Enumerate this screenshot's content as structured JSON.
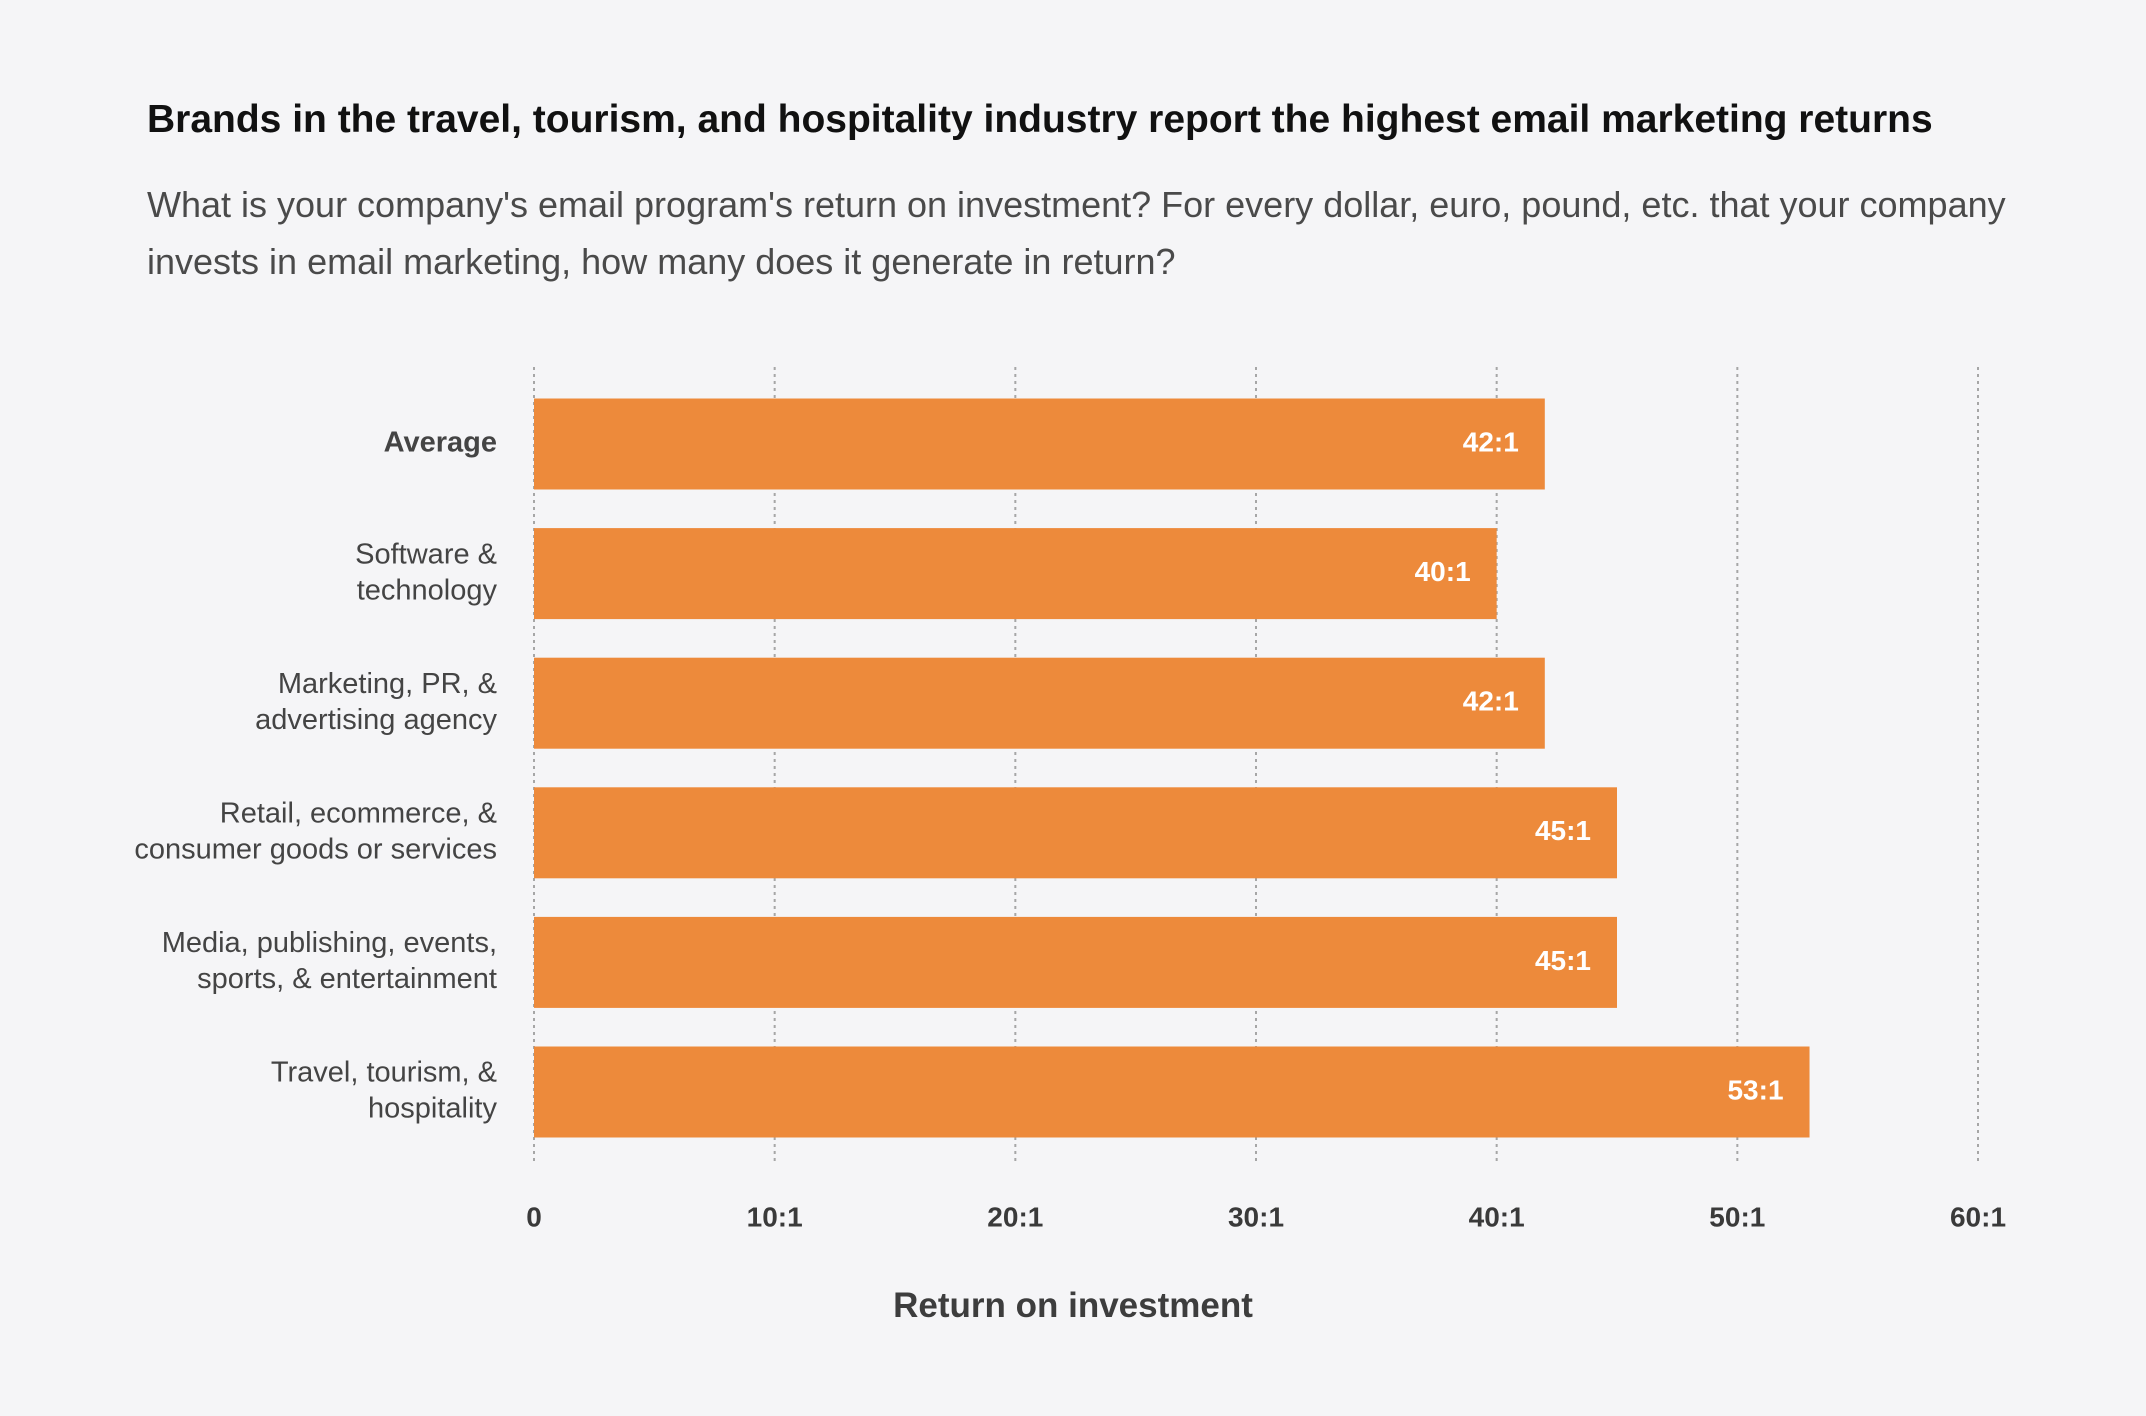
{
  "header": {
    "title": "Brands in the travel, tourism, and hospitality industry report the highest email marketing returns",
    "subtitle": "What is your company's email program's return on investment? For every dollar, euro, pound, etc. that your company invests in email marketing, how many does it generate in return?"
  },
  "colors": {
    "bar": "#ed8a3b",
    "grid": "#a6a6a6",
    "background": "#f5f5f7"
  },
  "chart_data": {
    "type": "bar",
    "orientation": "horizontal",
    "title": "Brands in the travel, tourism, and hospitality industry report the highest email marketing returns",
    "subtitle": "What is your company's email program's return on investment? For every dollar, euro, pound, etc. that your company invests in email marketing, how many does it generate in return?",
    "categories": [
      [
        "Average"
      ],
      [
        "Software &",
        "technology"
      ],
      [
        "Marketing, PR, &",
        "advertising agency"
      ],
      [
        "Retail, ecommerce, &",
        "consumer goods or services"
      ],
      [
        "Media, publishing, events,",
        "sports, & entertainment"
      ],
      [
        "Travel, tourism, &",
        "hospitality"
      ]
    ],
    "highlight_category_index": 0,
    "values": [
      42,
      40,
      42,
      45,
      45,
      53
    ],
    "value_labels": [
      "42:1",
      "40:1",
      "42:1",
      "45:1",
      "45:1",
      "53:1"
    ],
    "xlim": [
      0,
      60
    ],
    "xticks": [
      0,
      10,
      20,
      30,
      40,
      50,
      60
    ],
    "xtick_labels": [
      "0",
      "10:1",
      "20:1",
      "30:1",
      "40:1",
      "50:1",
      "60:1"
    ],
    "xlabel": "Return on investment",
    "ylabel": "",
    "grid": "vertical dotted"
  }
}
